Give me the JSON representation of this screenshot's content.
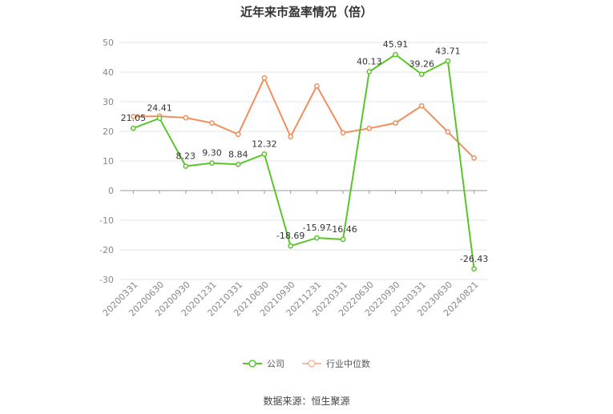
{
  "chart_data": {
    "type": "line",
    "title": "近年来市盈率情况（倍）",
    "categories": [
      "20200331",
      "20200630",
      "20200930",
      "20201231",
      "20210331",
      "20210630",
      "20210930",
      "20211231",
      "20220331",
      "20220630",
      "20220930",
      "20230331",
      "20230630",
      "20240821"
    ],
    "series": [
      {
        "name": "公司",
        "color": "#5ac52b",
        "values": [
          21.05,
          24.41,
          8.23,
          9.3,
          8.84,
          12.32,
          -18.69,
          -15.97,
          -16.46,
          40.13,
          45.91,
          39.26,
          43.71,
          -26.43
        ],
        "labels": [
          "21.05",
          "24.41",
          "8.23",
          "9.30",
          "8.84",
          "12.32",
          "-18.69",
          "-15.97",
          "-16.46",
          "40.13",
          "45.91",
          "39.26",
          "43.71",
          "-26.43"
        ]
      },
      {
        "name": "行业中位数",
        "color": "#f28e5c",
        "values": [
          25.0,
          25.1,
          24.6,
          22.8,
          19.0,
          38.0,
          18.2,
          35.3,
          19.5,
          21.0,
          22.8,
          28.6,
          19.8,
          11.0
        ]
      }
    ],
    "yticks": [
      "50",
      "40",
      "30",
      "20",
      "10",
      "0",
      "-10",
      "-20",
      "-30"
    ],
    "ylim": [
      -30,
      50
    ],
    "grid": true,
    "legend_position": "bottom"
  },
  "source_text": "数据来源：恒生聚源"
}
